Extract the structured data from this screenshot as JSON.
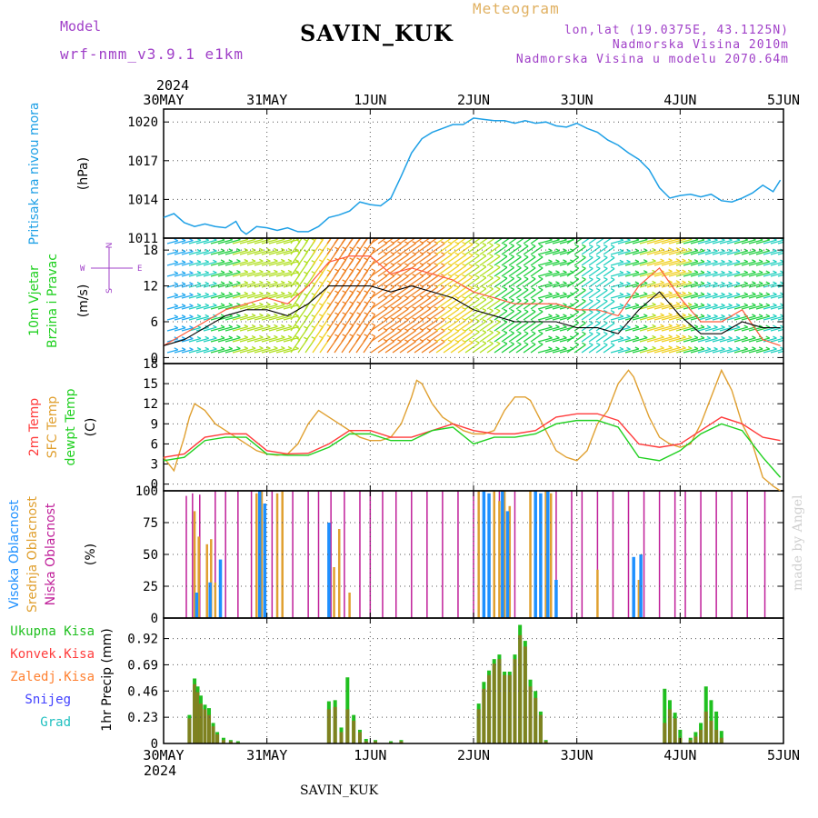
{
  "header": {
    "model_label": "Model",
    "model_name": "wrf-nmm_v3.9.1 e1km",
    "station": "SAVIN_KUK",
    "product": "Meteogram",
    "lonlat": "lon,lat (19.0375E, 43.1125N)",
    "altitude": "Nadmorska Visina 2010m",
    "model_altitude": "Nadmorska Visina u modelu 2070.64m",
    "credit": "made by Angel",
    "footer": "SAVIN_KUK"
  },
  "colors": {
    "pressure": "#1ea0e6",
    "wind_speed": "#000000",
    "gust": "#ff5a3c",
    "temp2m": "#ff3c3c",
    "sfc_temp": "#e0a030",
    "dewpoint": "#20d020",
    "high_cloud": "#1e90ff",
    "mid_cloud": "#e0a030",
    "low_cloud": "#c0209a",
    "total_precip": "#20c020",
    "conv_precip": "#ff3c3c",
    "grid_precip": "#ff8030",
    "snow": "#4040ff",
    "graupel": "#20c0c0"
  },
  "chart_data": [
    {
      "type": "line",
      "panel": "pressure",
      "ylabel_left": "Pritisak na nivou mora",
      "ylabel": "(hPa)",
      "ylim": [
        1011,
        1021
      ],
      "yticks": [
        1011,
        1014,
        1017,
        1020
      ],
      "xlim": [
        0,
        6
      ],
      "x_tick_labels": [
        "30MAY",
        "31MAY",
        "1JUN",
        "2JUN",
        "3JUN",
        "4JUN",
        "5JUN"
      ],
      "top_year": "2024",
      "series": [
        {
          "key": "mslp",
          "x": [
            0,
            0.1,
            0.2,
            0.3,
            0.4,
            0.5,
            0.6,
            0.7,
            0.75,
            0.8,
            0.9,
            1.0,
            1.1,
            1.2,
            1.3,
            1.4,
            1.5,
            1.6,
            1.7,
            1.8,
            1.9,
            2.0,
            2.1,
            2.2,
            2.3,
            2.4,
            2.5,
            2.6,
            2.7,
            2.8,
            2.9,
            3.0,
            3.1,
            3.2,
            3.3,
            3.4,
            3.5,
            3.6,
            3.7,
            3.8,
            3.9,
            4.0,
            4.1,
            4.2,
            4.3,
            4.4,
            4.5,
            4.6,
            4.7,
            4.8,
            4.9,
            5.0,
            5.1,
            5.2,
            5.3,
            5.4,
            5.5,
            5.6,
            5.7,
            5.8,
            5.9,
            5.97
          ],
          "values": [
            1012.6,
            1012.9,
            1012.2,
            1011.9,
            1012.1,
            1011.9,
            1011.8,
            1012.3,
            1011.6,
            1011.3,
            1011.9,
            1011.8,
            1011.6,
            1011.8,
            1011.5,
            1011.5,
            1011.9,
            1012.6,
            1012.8,
            1013.1,
            1013.8,
            1013.6,
            1013.5,
            1014.1,
            1015.8,
            1017.6,
            1018.7,
            1019.2,
            1019.5,
            1019.8,
            1019.8,
            1020.3,
            1020.2,
            1020.1,
            1020.1,
            1019.9,
            1020.1,
            1019.9,
            1020.0,
            1019.7,
            1019.6,
            1019.9,
            1019.5,
            1019.2,
            1018.6,
            1018.2,
            1017.6,
            1017.1,
            1016.3,
            1014.9,
            1014.1,
            1014.3,
            1014.4,
            1014.2,
            1014.4,
            1013.9,
            1013.8,
            1014.1,
            1014.5,
            1015.1,
            1014.6,
            1015.5
          ]
        }
      ]
    },
    {
      "type": "line",
      "panel": "wind",
      "ylabel_left": "10m Vjetar Brzina i Pravac",
      "ylabel": "(m/s)",
      "ylim": [
        -1,
        20
      ],
      "yticks": [
        0,
        6,
        12,
        18
      ],
      "compass": {
        "north": "N",
        "south": "S",
        "east": "E",
        "west": "W"
      },
      "series": [
        {
          "key": "wind_speed",
          "x": [
            0,
            0.2,
            0.4,
            0.6,
            0.8,
            1.0,
            1.2,
            1.4,
            1.6,
            1.8,
            2.0,
            2.2,
            2.4,
            2.6,
            2.8,
            3.0,
            3.2,
            3.4,
            3.6,
            3.8,
            4.0,
            4.2,
            4.4,
            4.6,
            4.8,
            5.0,
            5.2,
            5.4,
            5.6,
            5.8,
            5.97
          ],
          "values": [
            2,
            3,
            5,
            7,
            8,
            8,
            7,
            9,
            12,
            12,
            12,
            11,
            12,
            11,
            10,
            8,
            7,
            6,
            6,
            6,
            5,
            5,
            4,
            8,
            11,
            7,
            4,
            4,
            6,
            5,
            5
          ]
        },
        {
          "key": "gust",
          "x": [
            0,
            0.2,
            0.4,
            0.6,
            0.8,
            1.0,
            1.2,
            1.4,
            1.6,
            1.8,
            2.0,
            2.2,
            2.4,
            2.6,
            2.8,
            3.0,
            3.2,
            3.4,
            3.6,
            3.8,
            4.0,
            4.2,
            4.4,
            4.6,
            4.8,
            5.0,
            5.2,
            5.4,
            5.6,
            5.8,
            5.97
          ],
          "values": [
            2,
            4,
            6,
            8,
            9,
            10,
            9,
            12,
            16,
            17,
            17,
            14,
            15,
            14,
            13,
            11,
            10,
            9,
            9,
            9,
            8,
            8,
            7,
            12,
            15,
            10,
            6,
            6,
            8,
            3,
            2
          ]
        }
      ]
    },
    {
      "type": "line",
      "panel": "temperature",
      "ylabel_left": [
        "2m Temp",
        "SFC Temp",
        "dewpt Temp"
      ],
      "ylabel": "(C)",
      "ylim": [
        -1,
        18
      ],
      "yticks": [
        0,
        3,
        6,
        9,
        12,
        15,
        18
      ],
      "series": [
        {
          "key": "sfc_temp",
          "x": [
            0,
            0.1,
            0.2,
            0.25,
            0.3,
            0.4,
            0.5,
            0.6,
            0.7,
            0.8,
            0.9,
            1.0,
            1.1,
            1.2,
            1.3,
            1.4,
            1.5,
            1.6,
            1.7,
            1.8,
            1.9,
            2.0,
            2.1,
            2.2,
            2.3,
            2.4,
            2.45,
            2.5,
            2.6,
            2.7,
            2.8,
            2.9,
            3.0,
            3.1,
            3.2,
            3.3,
            3.4,
            3.5,
            3.55,
            3.6,
            3.7,
            3.8,
            3.9,
            4.0,
            4.1,
            4.2,
            4.3,
            4.4,
            4.5,
            4.55,
            4.6,
            4.7,
            4.8,
            4.9,
            5.0,
            5.1,
            5.2,
            5.3,
            5.4,
            5.5,
            5.6,
            5.7,
            5.8,
            5.9,
            5.97
          ],
          "values": [
            4,
            2,
            7,
            10,
            12,
            11,
            9,
            8,
            7,
            6,
            5,
            4.5,
            4.3,
            4.5,
            6,
            9,
            11,
            10,
            9,
            8,
            7,
            6.5,
            6.5,
            7,
            9,
            13,
            15.5,
            15,
            12,
            10,
            9,
            8,
            7.5,
            7.5,
            8,
            11,
            13,
            13,
            12.5,
            11,
            8,
            5,
            4,
            3.5,
            5,
            9,
            11,
            15,
            17,
            16,
            14,
            10,
            7,
            6,
            5.5,
            6,
            9,
            13,
            17,
            14,
            9,
            6,
            1,
            -0.3,
            -1
          ]
        },
        {
          "key": "temp2m",
          "x": [
            0,
            0.2,
            0.4,
            0.6,
            0.8,
            1.0,
            1.2,
            1.4,
            1.6,
            1.8,
            2.0,
            2.2,
            2.4,
            2.6,
            2.8,
            3.0,
            3.2,
            3.4,
            3.6,
            3.8,
            4.0,
            4.2,
            4.4,
            4.6,
            4.8,
            5.0,
            5.2,
            5.4,
            5.6,
            5.8,
            5.97
          ],
          "values": [
            4,
            4.5,
            7,
            7.5,
            7.5,
            5,
            4.5,
            4.6,
            6,
            8,
            8,
            7,
            7,
            8,
            9,
            8,
            7.5,
            7.5,
            8,
            10,
            10.5,
            10.5,
            9.5,
            6,
            5.5,
            6,
            8,
            10,
            9,
            7,
            6.5
          ]
        },
        {
          "key": "dewpoint",
          "x": [
            0,
            0.2,
            0.4,
            0.6,
            0.8,
            1.0,
            1.2,
            1.4,
            1.6,
            1.8,
            2.0,
            2.2,
            2.4,
            2.6,
            2.8,
            3.0,
            3.2,
            3.4,
            3.6,
            3.8,
            4.0,
            4.2,
            4.4,
            4.6,
            4.8,
            5.0,
            5.2,
            5.4,
            5.6,
            5.8,
            5.97
          ],
          "values": [
            3.5,
            4,
            6.5,
            7,
            7,
            4.5,
            4.3,
            4.3,
            5.5,
            7.5,
            7.5,
            6.5,
            6.5,
            8,
            8.5,
            6,
            7,
            7,
            7.5,
            9,
            9.5,
            9.5,
            8.5,
            4,
            3.5,
            5,
            7.5,
            9,
            8,
            4,
            1
          ]
        }
      ]
    },
    {
      "type": "bar",
      "panel": "cloud",
      "ylabel_left": [
        "Visoka Oblacnost",
        "Srednja Oblacnost",
        "Niska Oblacnost"
      ],
      "ylabel": "(%)",
      "ylim": [
        0,
        100
      ],
      "yticks": [
        0,
        25,
        50,
        75,
        100
      ],
      "series": [
        {
          "key": "low",
          "x": [
            0.22,
            0.28,
            0.35,
            0.5,
            0.6,
            0.72,
            0.85,
            0.95,
            1.05,
            1.15,
            1.25,
            1.4,
            1.5,
            1.62,
            1.75,
            1.9,
            2.0,
            2.12,
            2.25,
            2.4,
            2.55,
            2.7,
            2.85,
            3.0,
            3.1,
            3.25,
            3.4,
            3.55,
            3.7,
            3.8,
            3.95,
            4.05,
            4.2,
            4.35,
            4.5,
            4.65,
            4.8,
            4.95,
            5.05,
            5.2,
            5.35,
            5.5,
            5.65,
            5.82
          ],
          "values": [
            96,
            98,
            97,
            100,
            100,
            100,
            100,
            98,
            100,
            100,
            100,
            100,
            100,
            100,
            100,
            100,
            100,
            100,
            100,
            100,
            100,
            100,
            100,
            100,
            100,
            100,
            100,
            100,
            100,
            100,
            100,
            100,
            100,
            100,
            100,
            100,
            100,
            100,
            100,
            100,
            100,
            100,
            100,
            100
          ]
        },
        {
          "key": "mid",
          "x": [
            0.3,
            0.34,
            0.42,
            0.46,
            0.5,
            0.9,
            0.95,
            1.1,
            1.15,
            1.65,
            1.7,
            1.8,
            3.05,
            3.1,
            3.2,
            3.25,
            3.3,
            3.35,
            3.55,
            3.6,
            3.7,
            3.75,
            4.2,
            4.6
          ],
          "values": [
            84,
            64,
            58,
            62,
            28,
            98,
            100,
            98,
            100,
            40,
            70,
            20,
            100,
            96,
            100,
            92,
            100,
            88,
            100,
            90,
            100,
            98,
            38,
            30
          ]
        },
        {
          "key": "high",
          "x": [
            0.32,
            0.45,
            0.55,
            0.93,
            0.98,
            1.6,
            3.1,
            3.15,
            3.28,
            3.33,
            3.6,
            3.65,
            3.72,
            3.8,
            4.55,
            4.62
          ],
          "values": [
            20,
            28,
            46,
            100,
            90,
            75,
            100,
            98,
            100,
            84,
            100,
            98,
            100,
            30,
            48,
            50
          ]
        }
      ]
    },
    {
      "type": "bar",
      "panel": "precipitation",
      "legend": [
        "Ukupna Kisa",
        "Konvek.Kisa",
        "Zaledj.Kisa",
        "Snijeg",
        "Grad"
      ],
      "ylabel": "1hr Precip (mm)",
      "ylim": [
        0,
        1.1
      ],
      "yticks": [
        0,
        0.23,
        0.46,
        0.69,
        0.92
      ],
      "x_tick_labels": [
        "30MAY",
        "31MAY",
        "1JUN",
        "2JUN",
        "3JUN",
        "4JUN",
        "5JUN"
      ],
      "bottom_year": "2024",
      "x": [
        0.25,
        0.3,
        0.33,
        0.36,
        0.4,
        0.44,
        0.48,
        0.52,
        0.58,
        0.65,
        0.72,
        1.6,
        1.66,
        1.72,
        1.78,
        1.84,
        1.9,
        1.96,
        2.05,
        2.2,
        2.3,
        3.05,
        3.1,
        3.15,
        3.2,
        3.25,
        3.3,
        3.35,
        3.4,
        3.45,
        3.5,
        3.55,
        3.6,
        3.65,
        3.7,
        4.85,
        4.9,
        4.95,
        5.0,
        5.1,
        5.15,
        5.2,
        5.25,
        5.3,
        5.35,
        5.4
      ],
      "series": [
        {
          "key": "total",
          "values": [
            0.25,
            0.57,
            0.5,
            0.42,
            0.34,
            0.31,
            0.18,
            0.1,
            0.05,
            0.03,
            0.02,
            0.37,
            0.38,
            0.14,
            0.58,
            0.25,
            0.12,
            0.04,
            0.03,
            0.02,
            0.03,
            0.35,
            0.54,
            0.64,
            0.74,
            0.78,
            0.63,
            0.63,
            0.78,
            1.04,
            0.9,
            0.56,
            0.46,
            0.28,
            0.03,
            0.48,
            0.38,
            0.27,
            0.12,
            0.05,
            0.1,
            0.18,
            0.5,
            0.38,
            0.28,
            0.11
          ]
        },
        {
          "key": "convective",
          "values": [
            0.22,
            0.52,
            0.45,
            0.35,
            0.3,
            0.25,
            0.15,
            0.08,
            0.03,
            0.02,
            0.01,
            0.3,
            0.32,
            0.1,
            0.3,
            0.2,
            0.1,
            0.02,
            0.02,
            0.01,
            0.02,
            0.3,
            0.48,
            0.6,
            0.7,
            0.74,
            0.6,
            0.6,
            0.74,
            0.95,
            0.85,
            0.5,
            0.4,
            0.25,
            0.02,
            0.18,
            0.3,
            0.22,
            0.05,
            0.03,
            0.06,
            0.12,
            0.28,
            0.2,
            0.12,
            0.05
          ]
        }
      ]
    }
  ]
}
